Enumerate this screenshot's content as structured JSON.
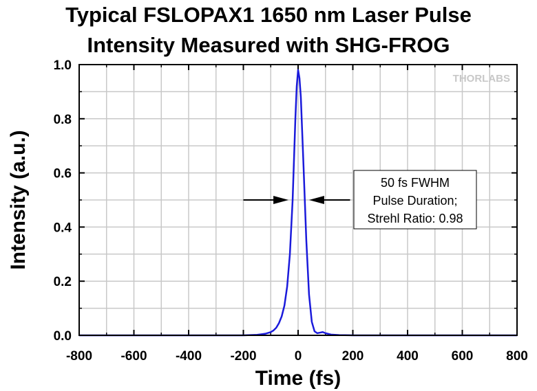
{
  "chart_data": {
    "type": "line",
    "title_lines": [
      "Typical FSLOPAX1 1650 nm Laser Pulse",
      "Intensity Measured with SHG-FROG"
    ],
    "xlabel": "Time (fs)",
    "ylabel": "Intensity (a.u.)",
    "xlim": [
      -800,
      800
    ],
    "ylim": [
      0,
      1.0
    ],
    "x_ticks": [
      -800,
      -600,
      -400,
      -200,
      0,
      200,
      400,
      600,
      800
    ],
    "y_ticks": [
      0.0,
      0.2,
      0.4,
      0.6,
      0.8,
      1.0
    ],
    "y_tick_labels": [
      "0.0",
      "0.2",
      "0.4",
      "0.6",
      "0.8",
      "1.0"
    ],
    "grid": true,
    "series": [
      {
        "color": "#1a1adb",
        "x": [
          -800,
          -200,
          -150,
          -120,
          -100,
          -90,
          -80,
          -70,
          -60,
          -50,
          -40,
          -30,
          -20,
          -10,
          -5,
          0,
          5,
          10,
          20,
          30,
          40,
          50,
          60,
          70,
          80,
          90,
          100,
          120,
          150,
          200,
          800
        ],
        "y": [
          0.0,
          0.0,
          0.002,
          0.006,
          0.012,
          0.018,
          0.028,
          0.045,
          0.07,
          0.11,
          0.18,
          0.3,
          0.5,
          0.8,
          0.92,
          0.98,
          0.95,
          0.88,
          0.62,
          0.35,
          0.15,
          0.05,
          0.015,
          0.008,
          0.01,
          0.012,
          0.008,
          0.003,
          0.001,
          0.0,
          0.0
        ]
      }
    ],
    "annotation": {
      "lines": [
        "50 fs FWHM",
        "Pulse Duration;",
        "Strehl Ratio: 0.98"
      ],
      "arrow_left_from_x": -200,
      "arrow_left_to_x": -35,
      "arrow_right_from_x": 190,
      "arrow_right_to_x": 40,
      "arrow_y": 0.5
    },
    "watermark": "THORLABS"
  }
}
